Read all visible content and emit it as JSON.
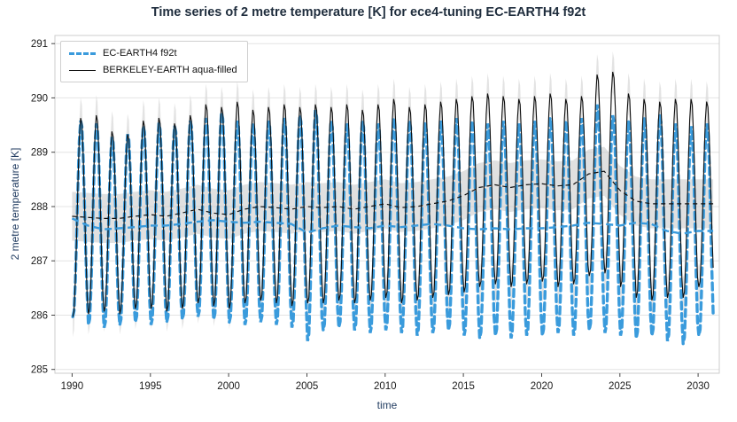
{
  "chart_data": {
    "type": "line",
    "title": "Time series of 2 metre temperature [K] for ece4-tuning EC-EARTH4 f92t",
    "xlabel": "time",
    "ylabel": "2 metre temperature [K]",
    "xlim": [
      1988.9,
      2031.35
    ],
    "ylim": [
      284.93,
      291.15
    ],
    "x_ticks": [
      1990,
      1995,
      2000,
      2005,
      2010,
      2015,
      2020,
      2025,
      2030
    ],
    "y_ticks": [
      285,
      286,
      287,
      288,
      289,
      290,
      291
    ],
    "grid": "horizontal",
    "legend_position": "upper-left",
    "colors": {
      "ec_earth": "#3a9bdc",
      "berkeley": "#101010",
      "envelope": "#dcdcdc",
      "band": "#c7c7c7",
      "grid": "#e4e4e4",
      "spine": "#cccccc",
      "title": "#1f2d3d",
      "axis_label": "#1f3a5f",
      "tick_label": "#1a1a1a"
    },
    "band_half_width": 0.45,
    "envelope_extra": 0.38,
    "years": [
      1990,
      1991,
      1992,
      1993,
      1994,
      1995,
      1996,
      1997,
      1998,
      1999,
      2000,
      2001,
      2002,
      2003,
      2004,
      2005,
      2006,
      2007,
      2008,
      2009,
      2010,
      2011,
      2012,
      2013,
      2014,
      2015,
      2016,
      2017,
      2018,
      2019,
      2020,
      2021,
      2022,
      2023,
      2024,
      2025,
      2026,
      2027,
      2028,
      2029,
      2030
    ],
    "series": [
      {
        "name": "EC-EARTH4 f92t",
        "style": "dashed-thick",
        "color_key": "ec_earth",
        "annual_peak": [
          289.6,
          289.55,
          289.3,
          289.35,
          289.5,
          289.55,
          289.5,
          289.6,
          289.65,
          289.75,
          289.6,
          289.55,
          289.6,
          289.65,
          289.7,
          289.8,
          289.6,
          289.55,
          289.6,
          289.55,
          289.65,
          289.6,
          289.55,
          289.6,
          289.65,
          289.6,
          289.55,
          289.6,
          289.55,
          289.6,
          289.65,
          289.6,
          289.65,
          289.9,
          289.7,
          289.6,
          289.65,
          289.7,
          289.55,
          289.5,
          289.55
        ],
        "annual_trough": [
          285.95,
          285.8,
          285.75,
          285.8,
          285.85,
          285.8,
          285.85,
          285.9,
          285.95,
          285.9,
          285.85,
          285.8,
          285.85,
          285.8,
          285.75,
          285.5,
          285.7,
          285.75,
          285.7,
          285.65,
          285.7,
          285.65,
          285.6,
          285.65,
          285.7,
          285.6,
          285.55,
          285.6,
          285.55,
          285.6,
          285.6,
          285.65,
          285.6,
          285.7,
          285.65,
          285.6,
          285.55,
          285.6,
          285.5,
          285.45,
          285.6
        ],
        "running_mean": [
          287.78,
          287.65,
          287.58,
          287.6,
          287.62,
          287.65,
          287.65,
          287.68,
          287.72,
          287.75,
          287.72,
          287.7,
          287.72,
          287.7,
          287.68,
          287.52,
          287.6,
          287.65,
          287.62,
          287.6,
          287.65,
          287.62,
          287.65,
          287.68,
          287.65,
          287.6,
          287.58,
          287.6,
          287.58,
          287.6,
          287.6,
          287.62,
          287.65,
          287.7,
          287.68,
          287.65,
          287.7,
          287.68,
          287.55,
          287.5,
          287.55
        ]
      },
      {
        "name": "BERKELEY-EARTH aqua-filled",
        "style": "solid-thin",
        "color_key": "berkeley",
        "annual_peak": [
          289.65,
          289.7,
          289.4,
          289.35,
          289.6,
          289.65,
          289.55,
          289.7,
          289.9,
          289.85,
          289.95,
          289.8,
          289.85,
          289.9,
          289.85,
          289.9,
          289.85,
          289.9,
          289.8,
          289.9,
          290.0,
          289.85,
          289.9,
          289.95,
          290.0,
          290.05,
          290.1,
          290.05,
          290.0,
          290.05,
          290.1,
          290.0,
          290.05,
          290.45,
          290.5,
          290.1,
          290.0,
          289.95,
          290.0,
          290.0,
          289.95
        ],
        "annual_trough": [
          285.95,
          286.0,
          286.05,
          286.0,
          286.1,
          286.1,
          286.05,
          286.1,
          286.2,
          286.15,
          286.1,
          286.2,
          286.25,
          286.2,
          286.15,
          286.2,
          286.2,
          286.25,
          286.2,
          286.25,
          286.3,
          286.2,
          286.25,
          286.3,
          286.35,
          286.4,
          286.5,
          286.55,
          286.5,
          286.55,
          286.6,
          286.5,
          286.55,
          286.7,
          286.75,
          286.5,
          286.3,
          286.25,
          286.3,
          286.3,
          286.5
        ],
        "running_mean": [
          287.82,
          287.8,
          287.78,
          287.78,
          287.82,
          287.85,
          287.82,
          287.88,
          287.95,
          287.88,
          287.85,
          287.95,
          288.0,
          287.98,
          287.95,
          288.0,
          287.98,
          288.0,
          287.95,
          288.0,
          288.05,
          287.98,
          288.0,
          288.05,
          288.1,
          288.2,
          288.35,
          288.4,
          288.35,
          288.4,
          288.42,
          288.38,
          288.4,
          288.6,
          288.65,
          288.3,
          288.1,
          288.05,
          288.05,
          288.05,
          288.05
        ]
      }
    ]
  }
}
